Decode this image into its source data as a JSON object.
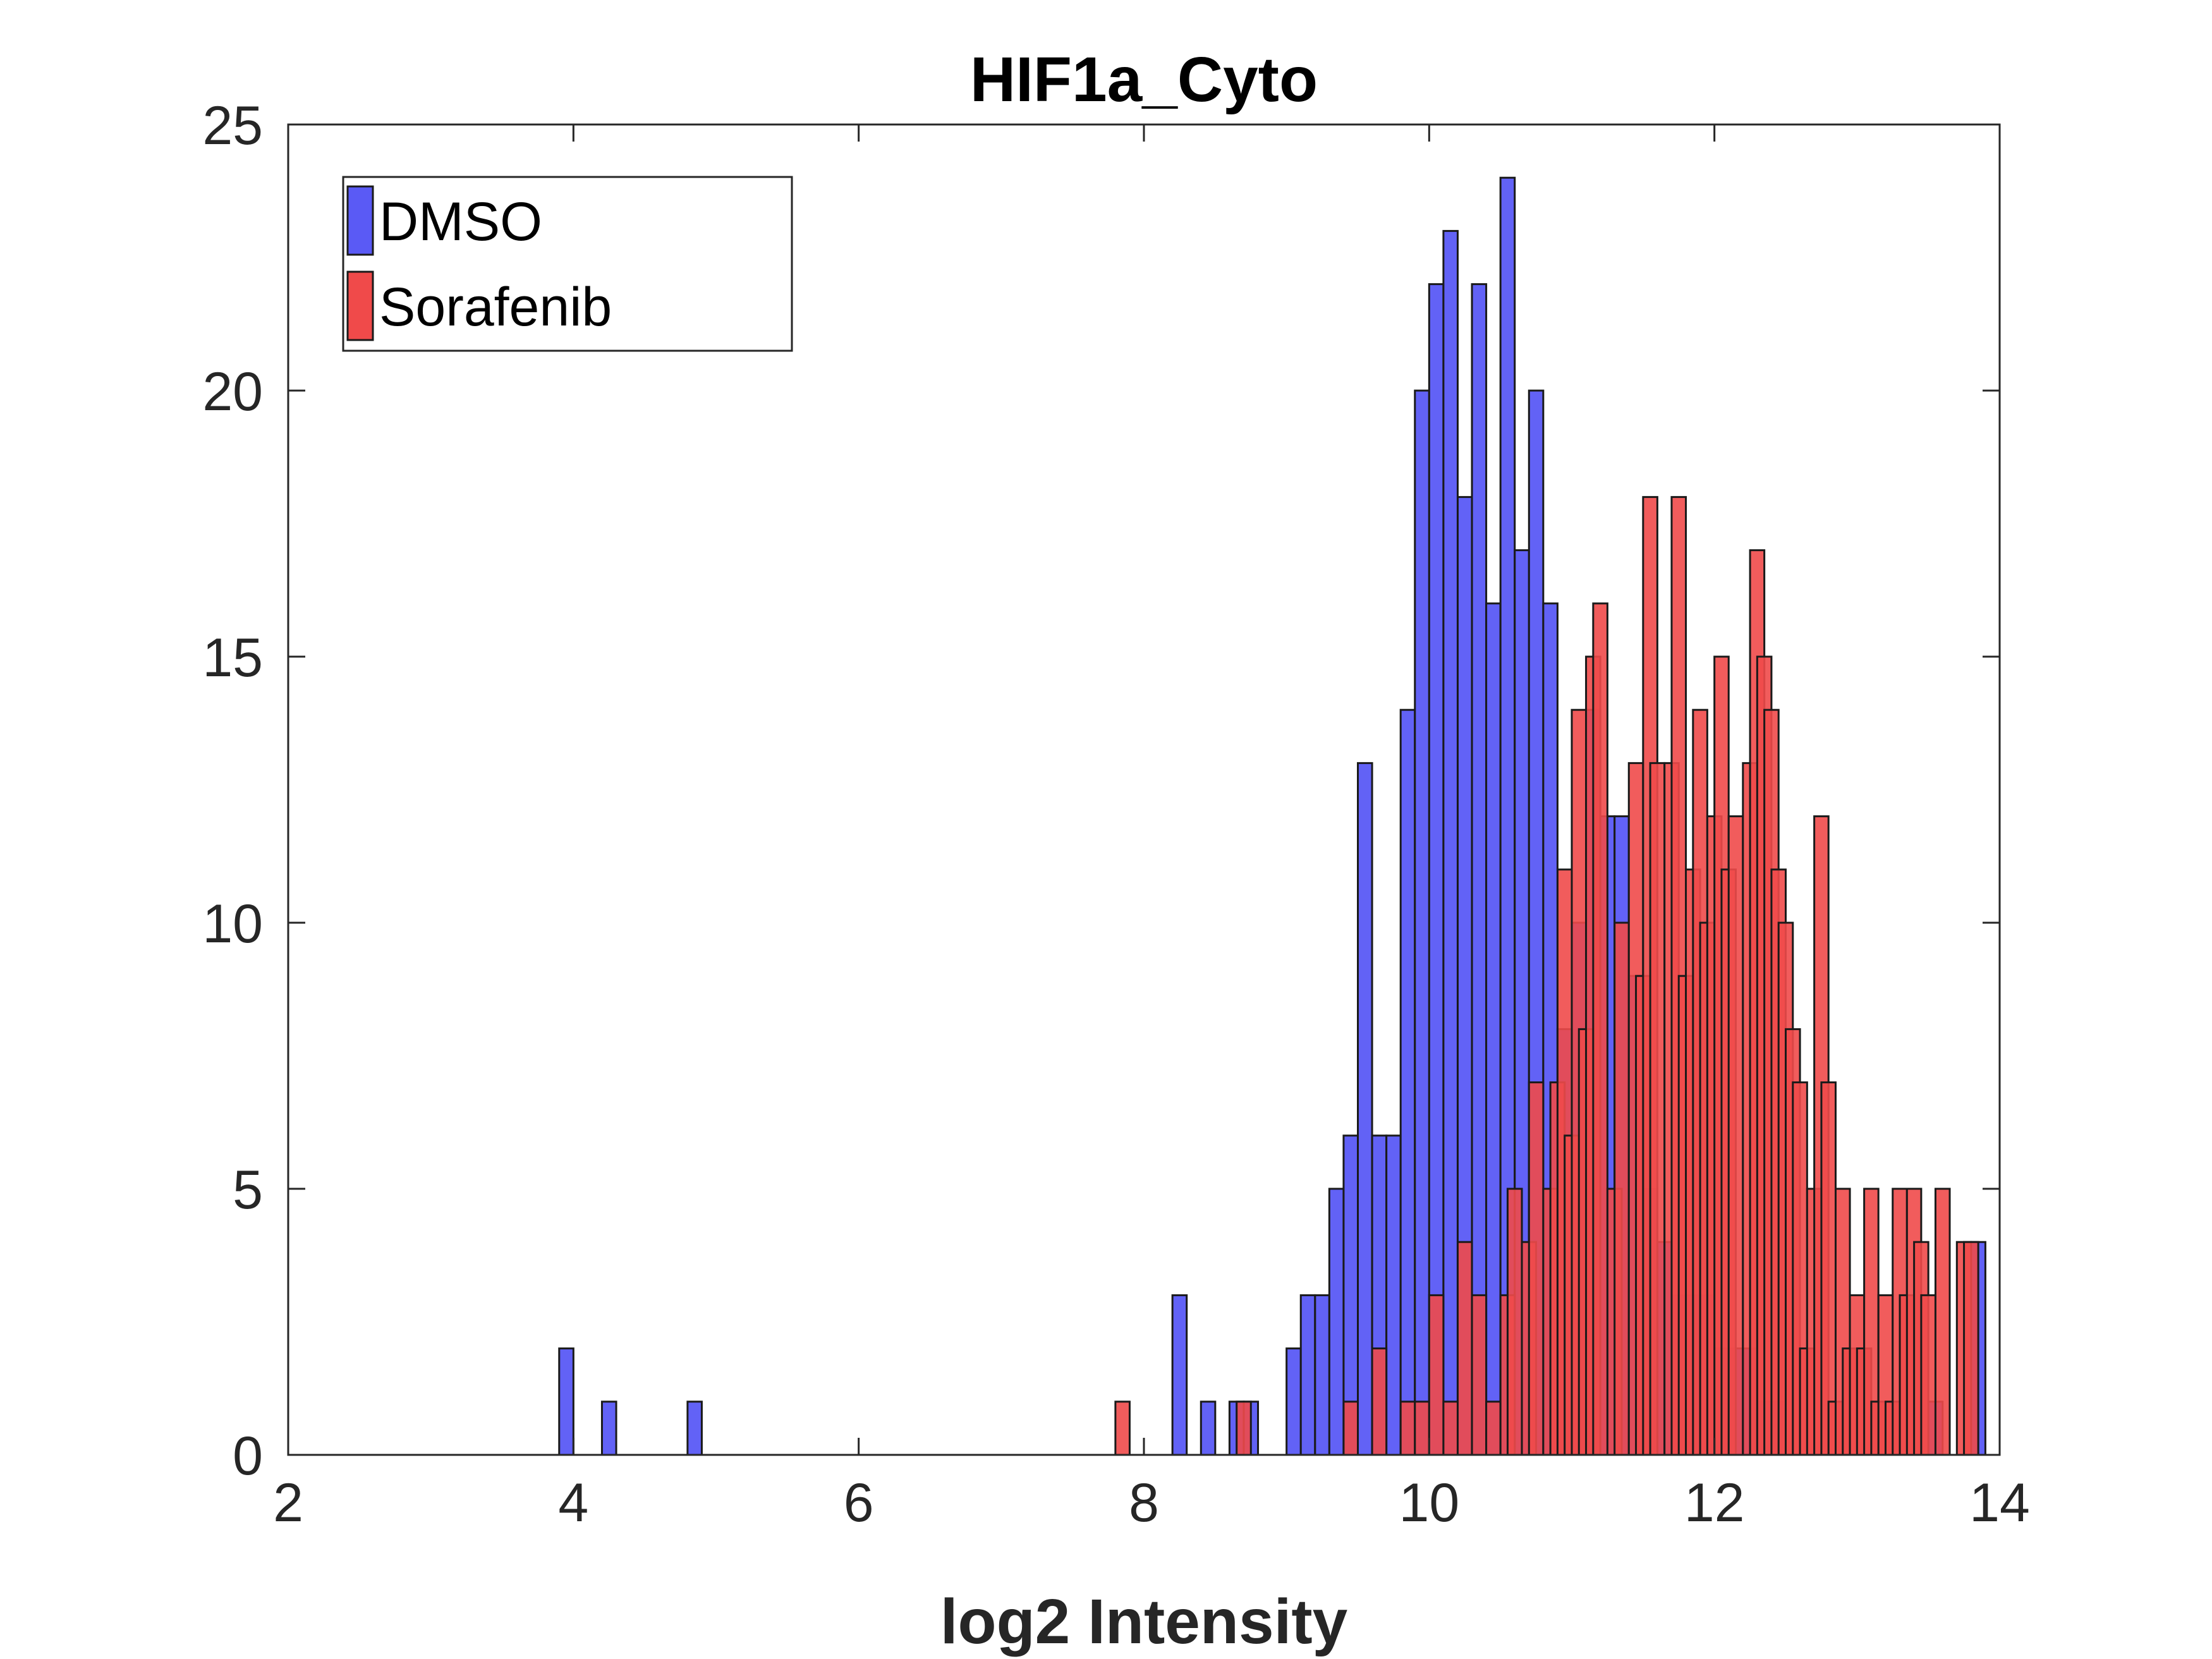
{
  "chart_data": {
    "type": "bar",
    "title": "HIF1a_Cyto",
    "xlabel": "log2 Intensity",
    "ylabel": "",
    "xlim": [
      2,
      14
    ],
    "ylim": [
      0,
      25
    ],
    "xticks": [
      "2",
      "4",
      "6",
      "8",
      "10",
      "12",
      "14"
    ],
    "yticks": [
      "0",
      "5",
      "10",
      "15",
      "20",
      "25"
    ],
    "grid": false,
    "legend_position": "top-left",
    "bin_width": 0.1,
    "series": [
      {
        "name": "DMSO",
        "color": "#5a5af5",
        "bins": [
          [
            3.95,
            2
          ],
          [
            4.25,
            1
          ],
          [
            4.85,
            1
          ],
          [
            8.25,
            3
          ],
          [
            8.45,
            1
          ],
          [
            8.65,
            1
          ],
          [
            8.75,
            1
          ],
          [
            9.05,
            2
          ],
          [
            9.15,
            3
          ],
          [
            9.25,
            3
          ],
          [
            9.35,
            5
          ],
          [
            9.45,
            6
          ],
          [
            9.55,
            13
          ],
          [
            9.65,
            6
          ],
          [
            9.75,
            6
          ],
          [
            9.85,
            14
          ],
          [
            9.95,
            20
          ],
          [
            10.05,
            22
          ],
          [
            10.15,
            23
          ],
          [
            10.25,
            18
          ],
          [
            10.35,
            22
          ],
          [
            10.45,
            16
          ],
          [
            10.55,
            24
          ],
          [
            10.65,
            17
          ],
          [
            10.75,
            20
          ],
          [
            10.85,
            16
          ],
          [
            10.95,
            8
          ],
          [
            11.05,
            10
          ],
          [
            11.15,
            14
          ],
          [
            11.25,
            12
          ],
          [
            11.35,
            12
          ],
          [
            11.45,
            9
          ],
          [
            11.55,
            5
          ],
          [
            11.65,
            4
          ],
          [
            11.75,
            3
          ],
          [
            11.85,
            3
          ],
          [
            11.95,
            3
          ],
          [
            12.05,
            2
          ],
          [
            12.15,
            2
          ],
          [
            12.25,
            2
          ],
          [
            12.35,
            1
          ],
          [
            12.45,
            1
          ],
          [
            13.55,
            1
          ],
          [
            13.85,
            4
          ]
        ]
      },
      {
        "name": "Sorafenib",
        "color": "#f04a4a",
        "bins": [
          [
            7.85,
            1
          ],
          [
            8.7,
            1
          ],
          [
            9.45,
            1
          ],
          [
            9.65,
            2
          ],
          [
            9.85,
            1
          ],
          [
            9.95,
            1
          ],
          [
            10.05,
            3
          ],
          [
            10.15,
            1
          ],
          [
            10.25,
            4
          ],
          [
            10.35,
            3
          ],
          [
            10.45,
            1
          ],
          [
            10.55,
            3
          ],
          [
            10.6,
            5
          ],
          [
            10.7,
            4
          ],
          [
            10.75,
            7
          ],
          [
            10.85,
            5
          ],
          [
            10.9,
            7
          ],
          [
            10.95,
            11
          ],
          [
            11.0,
            6
          ],
          [
            11.05,
            14
          ],
          [
            11.1,
            8
          ],
          [
            11.15,
            15
          ],
          [
            11.2,
            16
          ],
          [
            11.3,
            5
          ],
          [
            11.35,
            10
          ],
          [
            11.45,
            13
          ],
          [
            11.5,
            9
          ],
          [
            11.55,
            18
          ],
          [
            11.6,
            13
          ],
          [
            11.7,
            13
          ],
          [
            11.75,
            18
          ],
          [
            11.8,
            9
          ],
          [
            11.85,
            11
          ],
          [
            11.9,
            14
          ],
          [
            11.95,
            10
          ],
          [
            12.0,
            12
          ],
          [
            12.05,
            15
          ],
          [
            12.1,
            11
          ],
          [
            12.15,
            12
          ],
          [
            12.25,
            13
          ],
          [
            12.3,
            17
          ],
          [
            12.35,
            15
          ],
          [
            12.4,
            14
          ],
          [
            12.45,
            11
          ],
          [
            12.5,
            10
          ],
          [
            12.55,
            8
          ],
          [
            12.6,
            7
          ],
          [
            12.65,
            2
          ],
          [
            12.7,
            5
          ],
          [
            12.75,
            12
          ],
          [
            12.8,
            7
          ],
          [
            12.85,
            1
          ],
          [
            12.9,
            5
          ],
          [
            12.95,
            2
          ],
          [
            13.0,
            3
          ],
          [
            13.05,
            2
          ],
          [
            13.1,
            5
          ],
          [
            13.15,
            1
          ],
          [
            13.2,
            3
          ],
          [
            13.25,
            1
          ],
          [
            13.3,
            5
          ],
          [
            13.35,
            3
          ],
          [
            13.4,
            5
          ],
          [
            13.45,
            4
          ],
          [
            13.5,
            3
          ],
          [
            13.6,
            5
          ],
          [
            13.75,
            4
          ],
          [
            13.8,
            4
          ]
        ]
      }
    ]
  }
}
